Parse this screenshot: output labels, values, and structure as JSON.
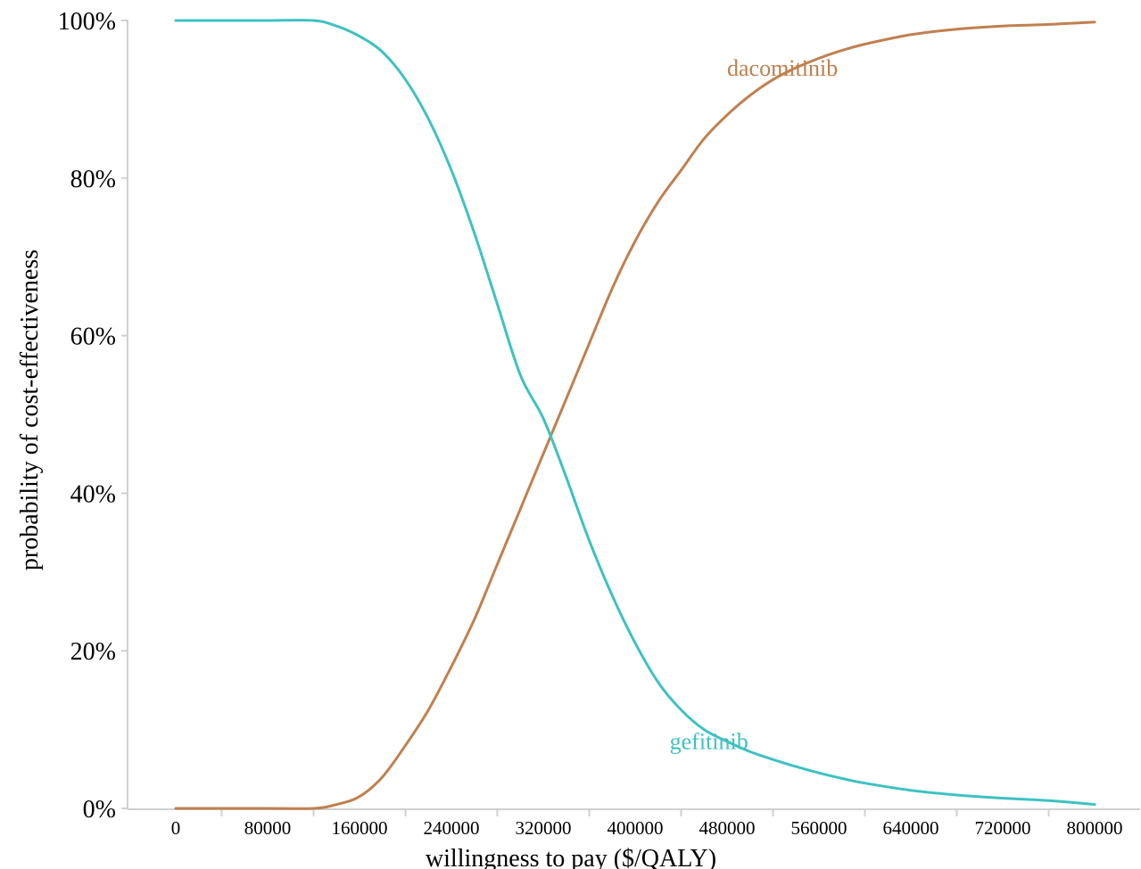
{
  "chart_data": {
    "type": "line",
    "title": "",
    "xlabel": "willingness to pay ($/QALY)",
    "ylabel": "probability of cost-effectiveness",
    "xlim": [
      0,
      800000
    ],
    "ylim": [
      0,
      100
    ],
    "x_ticks": [
      "0",
      "80000",
      "160000",
      "240000",
      "320000",
      "400000",
      "480000",
      "560000",
      "640000",
      "720000",
      "800000"
    ],
    "y_ticks": [
      "0%",
      "20%",
      "40%",
      "60%",
      "80%",
      "100%"
    ],
    "grid": false,
    "legend": "none (series labeled directly on chart)",
    "x": [
      0,
      40000,
      80000,
      120000,
      140000,
      160000,
      180000,
      200000,
      220000,
      240000,
      260000,
      280000,
      300000,
      320000,
      340000,
      360000,
      380000,
      400000,
      420000,
      440000,
      460000,
      480000,
      500000,
      520000,
      540000,
      560000,
      580000,
      600000,
      640000,
      680000,
      720000,
      760000,
      800000
    ],
    "series": [
      {
        "name": "dacomitinib",
        "color": "#c0804f",
        "values": [
          0,
          0,
          0,
          0,
          0.5,
          1.5,
          4,
          8,
          12.5,
          18,
          24,
          31,
          38,
          45,
          52,
          59,
          66,
          72,
          77,
          81,
          85,
          88,
          90.5,
          92.5,
          94,
          95.2,
          96.2,
          97,
          98.2,
          98.9,
          99.3,
          99.5,
          99.8
        ]
      },
      {
        "name": "gefitinib",
        "color": "#3ec1c1",
        "values": [
          100,
          100,
          100,
          100,
          99.3,
          98,
          96,
          92.5,
          87.5,
          81,
          73,
          64,
          55,
          49.5,
          42,
          34,
          27,
          21,
          16,
          12.5,
          10,
          8.5,
          7.2,
          6.2,
          5.3,
          4.5,
          3.8,
          3.2,
          2.3,
          1.7,
          1.3,
          1.0,
          0.5
        ]
      }
    ],
    "label_positions": {
      "dacomitinib": [
        480000,
        93
      ],
      "gefitinib": [
        430000,
        7.5
      ]
    }
  }
}
